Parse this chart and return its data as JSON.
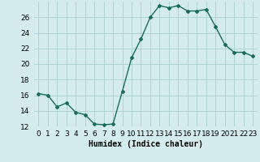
{
  "x": [
    0,
    1,
    2,
    3,
    4,
    5,
    6,
    7,
    8,
    9,
    10,
    11,
    12,
    13,
    14,
    15,
    16,
    17,
    18,
    19,
    20,
    21,
    22,
    23
  ],
  "y": [
    16.2,
    16.0,
    14.5,
    15.0,
    13.8,
    13.5,
    12.3,
    12.2,
    12.3,
    16.5,
    20.8,
    23.2,
    26.0,
    27.5,
    27.2,
    27.5,
    26.8,
    26.8,
    27.0,
    24.8,
    22.5,
    21.5,
    21.5,
    21.0
  ],
  "line_color": "#1a6b5a",
  "marker": "D",
  "marker_size": 2,
  "bg_color": "#d4ecee",
  "grid_color": "#a8d0d2",
  "xlabel": "Humidex (Indice chaleur)",
  "ylim": [
    12,
    28
  ],
  "xlim": [
    -0.5,
    23.5
  ],
  "yticks": [
    12,
    14,
    16,
    18,
    20,
    22,
    24,
    26
  ],
  "xtick_labels": [
    "0",
    "1",
    "2",
    "3",
    "4",
    "5",
    "6",
    "7",
    "8",
    "9",
    "10",
    "11",
    "12",
    "13",
    "14",
    "15",
    "16",
    "17",
    "18",
    "19",
    "20",
    "21",
    "22",
    "23"
  ],
  "xlabel_fontsize": 7,
  "tick_fontsize": 6.5
}
